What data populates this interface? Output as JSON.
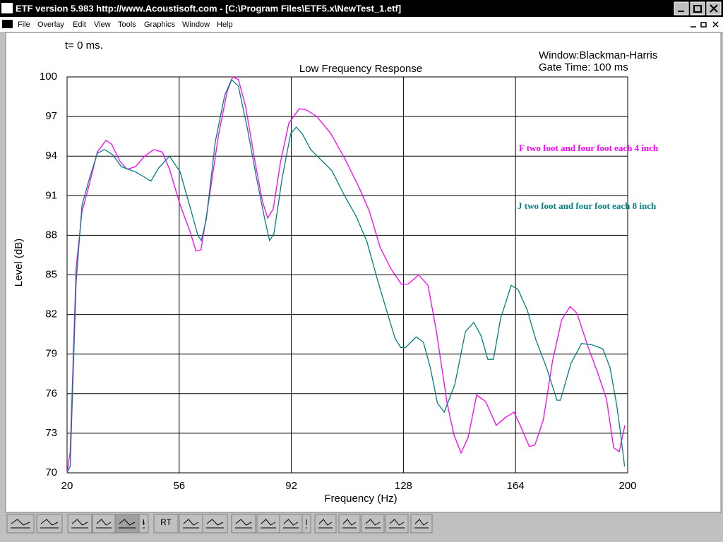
{
  "window": {
    "title": "ETF version 5.983 http://www.Acoustisoft.com - [C:\\Program Files\\ETF5.x\\NewTest_1.etf]",
    "menu": [
      "File",
      "Overlay",
      "Edit",
      "View",
      "Tools",
      "Graphics",
      "Window",
      "Help"
    ]
  },
  "toolbar": {
    "labels": [
      "RT"
    ]
  },
  "chart_data": {
    "type": "line",
    "title": "Low Frequency Response",
    "x_label": "Frequency (Hz)",
    "y_label": "Level (dB)",
    "annotations": [
      "t= 0 ms.",
      "Window:Blackman-Harris",
      "Gate Time: 100 ms"
    ],
    "xlim": [
      20,
      200
    ],
    "xticks": [
      20,
      56,
      92,
      128,
      164,
      200
    ],
    "ylim": [
      70,
      100
    ],
    "yticks": [
      70,
      73,
      76,
      79,
      82,
      85,
      88,
      91,
      94,
      97,
      100
    ],
    "grid": true,
    "series": [
      {
        "name": "F two foot and four foot each 4 inch",
        "color": "#ff00ff",
        "x": [
          20,
          21,
          22.9,
          24.8,
          27.3,
          29.7,
          32.5,
          34.3,
          37,
          39.3,
          42,
          44.9,
          47.9,
          50.6,
          52.9,
          56.3,
          59.6,
          61.4,
          63,
          65.3,
          68.7,
          71.4,
          73.2,
          75,
          77.3,
          80.4,
          82.7,
          84.4,
          86.2,
          88.5,
          91.2,
          94.6,
          96.8,
          100.2,
          104.7,
          109.2,
          113.8,
          117.1,
          120.5,
          123.9,
          127.3,
          129.5,
          132.9,
          135.9,
          138.6,
          142,
          144.2,
          146.5,
          148.8,
          151.5,
          154.4,
          157.8,
          160.8,
          163.5,
          165.7,
          168.4,
          170.2,
          172.9,
          175.9,
          178.8,
          181.5,
          183.7,
          187.2,
          190.5,
          193.2,
          195.5,
          197.3,
          199.1
        ],
        "values": [
          70,
          71.6,
          85.5,
          89.8,
          92,
          94.3,
          95.2,
          94.9,
          93.6,
          93,
          93.2,
          94,
          94.5,
          94.3,
          93,
          90.3,
          88.2,
          86.8,
          86.9,
          90.3,
          95.7,
          98.9,
          100,
          99.8,
          97.8,
          93.5,
          90.6,
          89.3,
          90,
          93.5,
          96.5,
          97.6,
          97.5,
          97,
          95.7,
          93.8,
          91.6,
          89.8,
          87.1,
          85.5,
          84.3,
          84.3,
          85,
          84.2,
          80.7,
          75.3,
          72.9,
          71.5,
          72.7,
          75.9,
          75.4,
          73.6,
          74.2,
          74.6,
          73.5,
          72,
          72.1,
          74,
          78.5,
          81.6,
          82.6,
          82.1,
          79.6,
          77.5,
          75.6,
          71.9,
          71.6,
          73.6
        ]
      },
      {
        "name": "J two foot and four foot each 8 inch",
        "color": "#008080",
        "x": [
          20,
          21,
          22.9,
          24.8,
          27.3,
          29.7,
          32,
          34.7,
          37.4,
          42,
          44.9,
          46.9,
          49.4,
          52.9,
          56.3,
          59.3,
          62,
          63.1,
          64.7,
          67.6,
          70.6,
          72.8,
          75,
          77.8,
          80.7,
          83.4,
          85,
          86.4,
          89.1,
          91.8,
          93.6,
          95.5,
          98.2,
          101.6,
          105,
          109.1,
          112.9,
          116.3,
          119.7,
          123.1,
          125.3,
          127.1,
          128.7,
          132.1,
          134.4,
          136.6,
          138.9,
          141.1,
          144.5,
          147.9,
          150.6,
          152.9,
          155.1,
          156.9,
          159.2,
          162.6,
          164.8,
          167.8,
          170.5,
          173.9,
          177.3,
          178.4,
          181.8,
          185.2,
          188.6,
          192,
          194.3,
          196.5,
          197.6,
          199
        ],
        "values": [
          70,
          70.5,
          84.4,
          90.3,
          92.4,
          94.2,
          94.5,
          94.1,
          93.2,
          92.8,
          92.4,
          92.1,
          93.1,
          94,
          92.8,
          90.3,
          88,
          87.6,
          89.2,
          95.1,
          98.6,
          99.8,
          99.3,
          96.2,
          92.5,
          89.3,
          87.6,
          88.1,
          92.4,
          95.7,
          96.2,
          95.7,
          94.5,
          93.7,
          92.9,
          91,
          89.4,
          87.5,
          84.6,
          81.9,
          80.2,
          79.5,
          79.5,
          80.3,
          79.9,
          78,
          75.3,
          74.6,
          76.7,
          80.7,
          81.4,
          80.4,
          78.6,
          78.6,
          81.7,
          84.2,
          83.9,
          82.3,
          80.1,
          78,
          75.5,
          75.5,
          78.3,
          79.8,
          79.7,
          79.4,
          78,
          75.1,
          73.2,
          70.5
        ]
      }
    ]
  }
}
